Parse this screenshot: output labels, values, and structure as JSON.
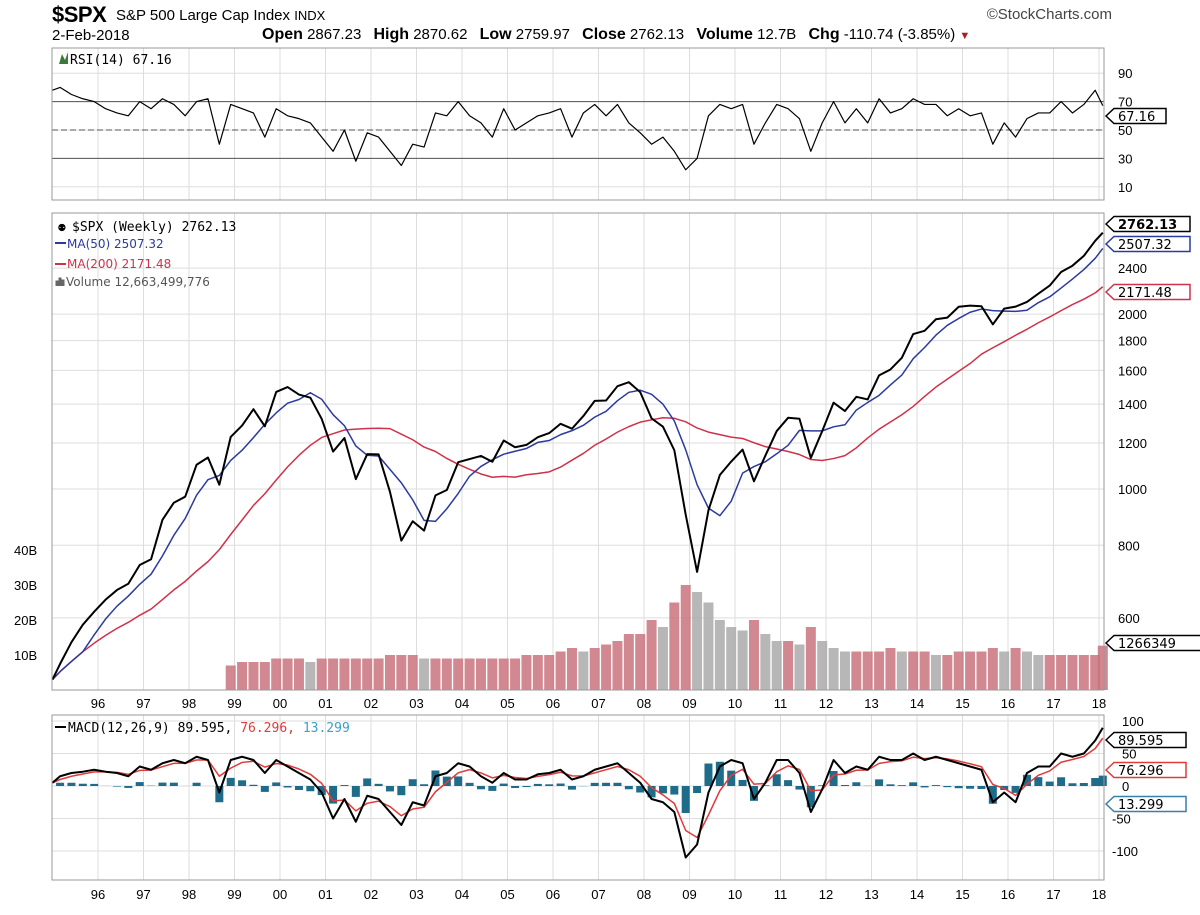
{
  "header": {
    "symbol": "$SPX",
    "name": "S&P 500 Large Cap Index",
    "exchange": "INDX",
    "brand": "©StockCharts.com",
    "date": "2-Feb-2018",
    "open_label": "Open",
    "open": "2867.23",
    "high_label": "High",
    "high": "2870.62",
    "low_label": "Low",
    "low": "2759.97",
    "close_label": "Close",
    "close": "2762.13",
    "volume_label": "Volume",
    "volume": "12.7B",
    "chg_label": "Chg",
    "chg": "-110.74 (-3.85%)",
    "chg_icon": "triangle-down-icon"
  },
  "colors": {
    "price": "#000000",
    "ma50": "#2b3a9e",
    "ma200": "#d0314a",
    "volume_down": "#c9737c",
    "volume_up": "#aaaaaa",
    "macd": "#000000",
    "signal": "#e03a3a",
    "histogram": "#1f6b8a",
    "grid": "#dddddd",
    "rsi_fill": "#3c7a3c"
  },
  "legend": {
    "rsi": "RSI(14) 67.16",
    "price": "$SPX (Weekly) 2762.13",
    "ma50": "MA(50) 2507.32",
    "ma200": "MA(200) 2171.48",
    "volume": "Volume 12,663,499,776",
    "macd_prefix": "MACD(12,26,9)",
    "macd_value": "89.595,",
    "signal_value": "76.296,",
    "hist_value": "13.299"
  },
  "tags": {
    "rsi": "67.16",
    "price": "2762.13",
    "ma50": "2507.32",
    "ma200": "2171.48",
    "volume": "1266349",
    "macd": "89.595",
    "signal": "76.296",
    "hist": "13.299"
  },
  "chart_data": [
    {
      "panel": "rsi",
      "type": "line",
      "scale": "linear",
      "yticks": [
        10,
        30,
        50,
        70,
        90
      ],
      "ylim": [
        0,
        100
      ],
      "reference_lines": [
        30,
        50,
        70
      ],
      "last": 67.16
    },
    {
      "panel": "price",
      "type": "line",
      "scale": "log",
      "frequency": "weekly",
      "yticks": [
        600,
        800,
        1000,
        1200,
        1400,
        1600,
        1800,
        2000,
        2400
      ],
      "xticks": [
        "96",
        "97",
        "98",
        "99",
        "00",
        "01",
        "02",
        "03",
        "04",
        "05",
        "06",
        "07",
        "08",
        "09",
        "10",
        "11",
        "12",
        "13",
        "14",
        "15",
        "16",
        "17",
        "18"
      ],
      "dates": [
        "1995-01",
        "1995-03",
        "1995-06",
        "1995-09",
        "1995-12",
        "1996-03",
        "1996-06",
        "1996-09",
        "1996-12",
        "1997-03",
        "1997-06",
        "1997-09",
        "1997-12",
        "1998-03",
        "1998-06",
        "1998-09",
        "1998-12",
        "1999-03",
        "1999-06",
        "1999-09",
        "1999-12",
        "2000-03",
        "2000-06",
        "2000-09",
        "2000-12",
        "2001-03",
        "2001-06",
        "2001-09",
        "2001-12",
        "2002-03",
        "2002-06",
        "2002-09",
        "2002-12",
        "2003-03",
        "2003-06",
        "2003-09",
        "2003-12",
        "2004-03",
        "2004-06",
        "2004-09",
        "2004-12",
        "2005-03",
        "2005-06",
        "2005-09",
        "2005-12",
        "2006-03",
        "2006-06",
        "2006-09",
        "2006-12",
        "2007-03",
        "2007-06",
        "2007-09",
        "2007-12",
        "2008-03",
        "2008-06",
        "2008-09",
        "2008-12",
        "2009-03",
        "2009-06",
        "2009-09",
        "2009-12",
        "2010-03",
        "2010-06",
        "2010-09",
        "2010-12",
        "2011-03",
        "2011-06",
        "2011-09",
        "2011-12",
        "2012-03",
        "2012-06",
        "2012-09",
        "2012-12",
        "2013-03",
        "2013-06",
        "2013-09",
        "2013-12",
        "2014-03",
        "2014-06",
        "2014-09",
        "2014-12",
        "2015-03",
        "2015-06",
        "2015-09",
        "2015-12",
        "2016-03",
        "2016-06",
        "2016-09",
        "2016-12",
        "2017-03",
        "2017-06",
        "2017-09",
        "2017-12",
        "2018-02"
      ],
      "series": [
        {
          "name": "$SPX (Weekly)",
          "values": [
            470,
            500,
            545,
            584,
            615,
            645,
            670,
            687,
            740,
            757,
            885,
            947,
            970,
            1101,
            1133,
            1017,
            1229,
            1286,
            1372,
            1282,
            1469,
            1498,
            1454,
            1436,
            1320,
            1160,
            1224,
            1040,
            1148,
            1147,
            989,
            815,
            880,
            848,
            975,
            996,
            1112,
            1126,
            1140,
            1114,
            1212,
            1180,
            1191,
            1228,
            1248,
            1295,
            1270,
            1335,
            1418,
            1420,
            1503,
            1527,
            1468,
            1323,
            1280,
            1166,
            903,
            720,
            919,
            1057,
            1115,
            1169,
            1031,
            1141,
            1258,
            1326,
            1321,
            1131,
            1258,
            1408,
            1362,
            1441,
            1426,
            1569,
            1606,
            1682,
            1848,
            1872,
            1960,
            1972,
            2059,
            2068,
            2063,
            1920,
            2044,
            2060,
            2099,
            2168,
            2239,
            2363,
            2423,
            2519,
            2674,
            2762
          ]
        },
        {
          "name": "MA(50)",
          "last": 2507.32
        },
        {
          "name": "MA(200)",
          "last": 2171.48
        }
      ],
      "rsi": [
        78,
        80,
        75,
        72,
        70,
        65,
        62,
        60,
        70,
        65,
        72,
        68,
        60,
        70,
        72,
        40,
        68,
        65,
        62,
        45,
        65,
        60,
        58,
        55,
        45,
        35,
        50,
        28,
        48,
        45,
        35,
        25,
        40,
        38,
        62,
        60,
        70,
        60,
        55,
        45,
        65,
        50,
        55,
        60,
        62,
        65,
        45,
        62,
        68,
        60,
        68,
        55,
        48,
        40,
        45,
        35,
        22,
        30,
        60,
        68,
        65,
        68,
        40,
        55,
        68,
        65,
        58,
        35,
        55,
        70,
        55,
        65,
        55,
        72,
        62,
        65,
        72,
        68,
        68,
        60,
        65,
        60,
        62,
        40,
        55,
        45,
        58,
        62,
        62,
        70,
        62,
        68,
        78,
        67.16
      ],
      "macd": [
        5,
        15,
        20,
        22,
        25,
        22,
        20,
        15,
        30,
        25,
        35,
        40,
        35,
        45,
        40,
        -10,
        40,
        45,
        40,
        20,
        40,
        30,
        20,
        10,
        -10,
        -50,
        -20,
        -55,
        -15,
        -20,
        -40,
        -60,
        -25,
        -30,
        15,
        20,
        35,
        30,
        15,
        5,
        20,
        10,
        10,
        18,
        20,
        25,
        10,
        15,
        25,
        30,
        35,
        20,
        5,
        -20,
        -25,
        -40,
        -110,
        -90,
        -10,
        30,
        40,
        35,
        -20,
        5,
        40,
        40,
        20,
        -40,
        -5,
        40,
        20,
        30,
        25,
        45,
        40,
        40,
        50,
        40,
        45,
        40,
        35,
        30,
        25,
        -25,
        -10,
        -25,
        20,
        30,
        30,
        50,
        45,
        50,
        70,
        89.595
      ]
    },
    {
      "panel": "volume",
      "type": "bar",
      "unit": "B",
      "yticks": [
        "10B",
        "20B",
        "30B",
        "40B"
      ],
      "dates": [
        "1998-12",
        "1999-03",
        "1999-06",
        "1999-09",
        "1999-12",
        "2000-03",
        "2000-06",
        "2000-09",
        "2000-12",
        "2001-03",
        "2001-06",
        "2001-09",
        "2001-12",
        "2002-03",
        "2002-06",
        "2002-09",
        "2002-12",
        "2003-03",
        "2003-06",
        "2003-09",
        "2003-12",
        "2004-03",
        "2004-06",
        "2004-09",
        "2004-12",
        "2005-03",
        "2005-06",
        "2005-09",
        "2005-12",
        "2006-03",
        "2006-06",
        "2006-09",
        "2006-12",
        "2007-03",
        "2007-06",
        "2007-09",
        "2007-12",
        "2008-03",
        "2008-06",
        "2008-09",
        "2008-12",
        "2009-03",
        "2009-06",
        "2009-09",
        "2009-12",
        "2010-03",
        "2010-06",
        "2010-09",
        "2010-12",
        "2011-03",
        "2011-06",
        "2011-09",
        "2011-12",
        "2012-03",
        "2012-06",
        "2012-09",
        "2012-12",
        "2013-03",
        "2013-06",
        "2013-09",
        "2013-12",
        "2014-03",
        "2014-06",
        "2014-09",
        "2014-12",
        "2015-03",
        "2015-06",
        "2015-09",
        "2015-12",
        "2016-03",
        "2016-06",
        "2016-09",
        "2016-12",
        "2017-03",
        "2017-06",
        "2017-09",
        "2017-12",
        "2018-02"
      ],
      "values": [
        7,
        8,
        8,
        8,
        9,
        9,
        9,
        8,
        9,
        9,
        9,
        9,
        9,
        9,
        10,
        10,
        10,
        9,
        9,
        9,
        9,
        9,
        9,
        9,
        9,
        9,
        10,
        10,
        10,
        11,
        12,
        11,
        12,
        13,
        14,
        16,
        16,
        20,
        18,
        25,
        30,
        28,
        25,
        20,
        18,
        17,
        20,
        16,
        14,
        14,
        13,
        18,
        14,
        12,
        11,
        11,
        11,
        11,
        12,
        11,
        11,
        11,
        10,
        10,
        11,
        11,
        11,
        12,
        11,
        12,
        11,
        10,
        10,
        10,
        10,
        10,
        10,
        12.66
      ]
    },
    {
      "panel": "macd",
      "type": "line",
      "yticks": [
        100,
        50,
        0,
        -50,
        -100
      ],
      "series": [
        {
          "name": "MACD(12,26,9)",
          "last": 89.595
        },
        {
          "name": "signal",
          "last": 76.296
        },
        {
          "name": "histogram",
          "last": 13.299
        }
      ]
    }
  ]
}
